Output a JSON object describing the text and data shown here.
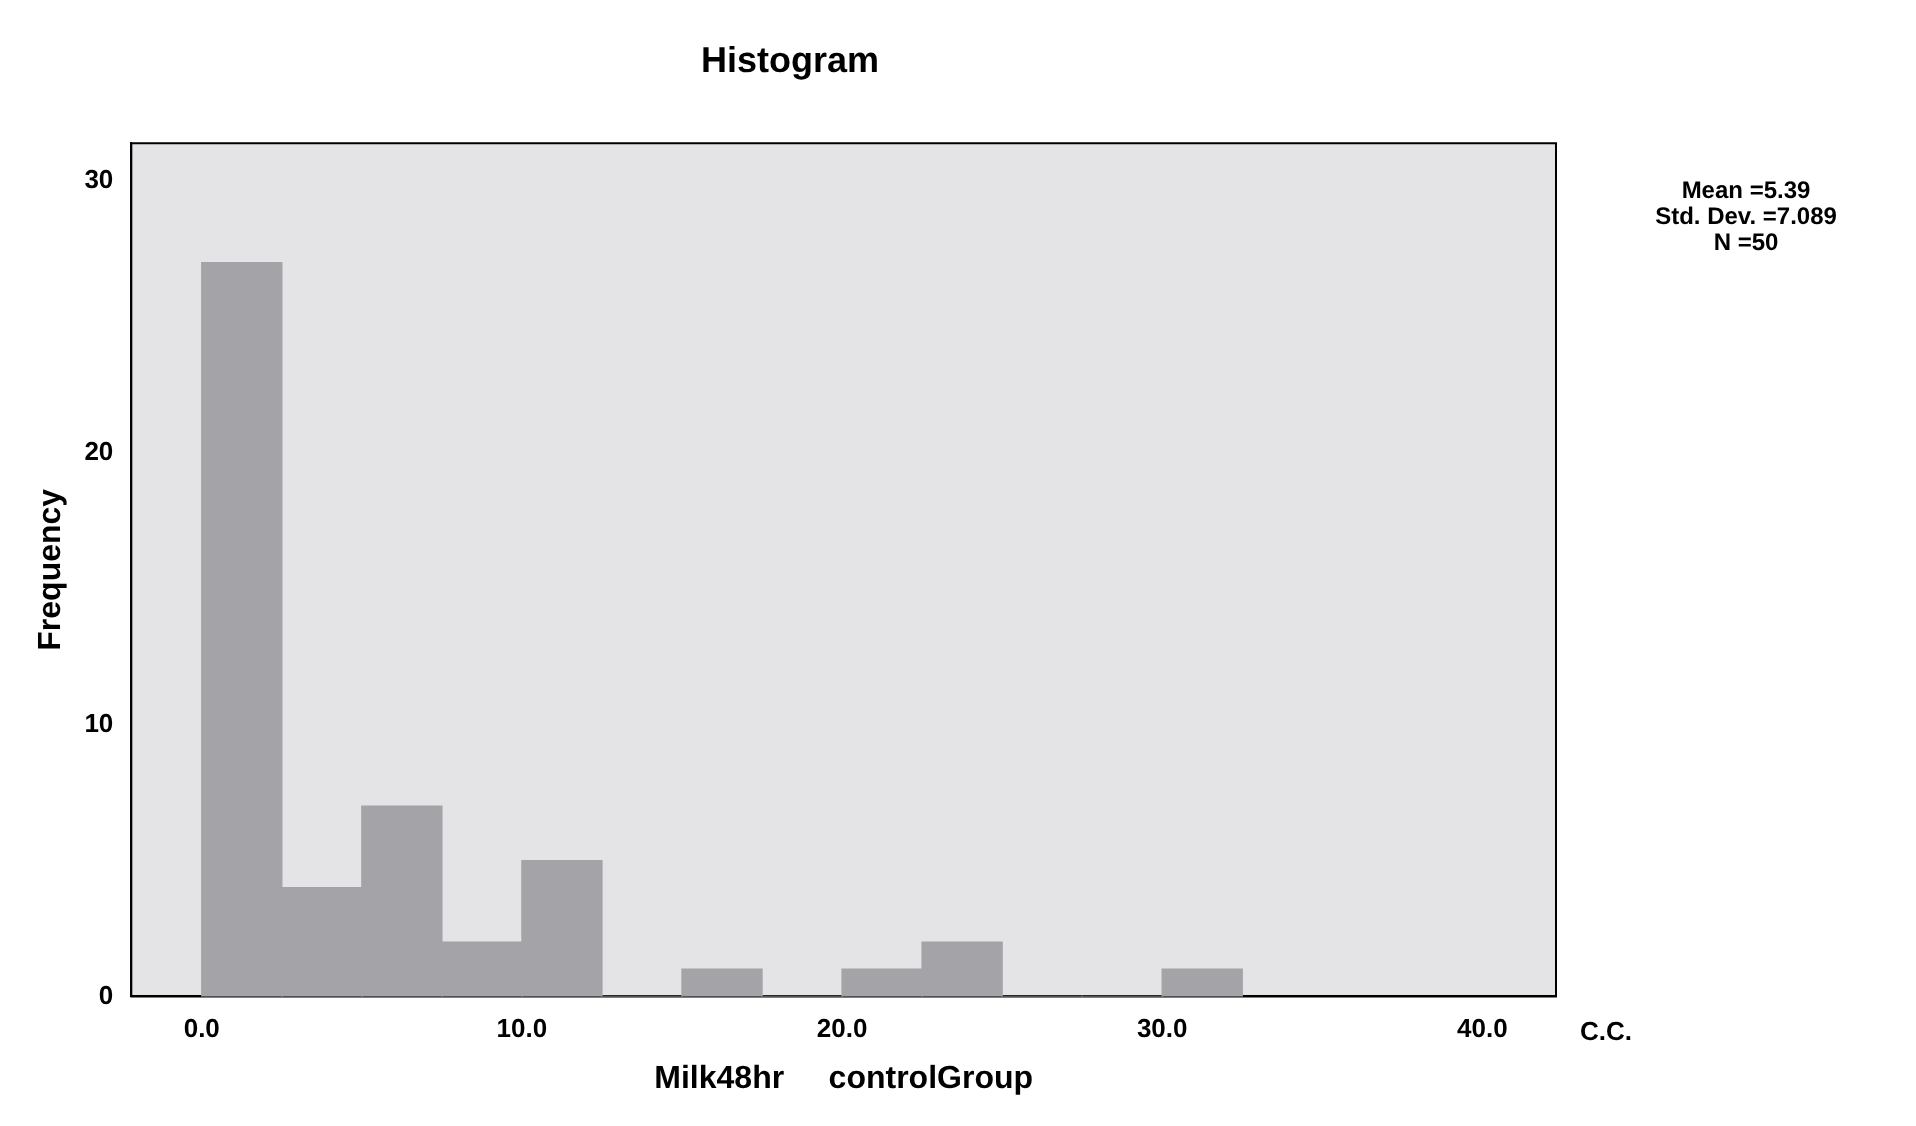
{
  "chart_data": {
    "type": "histogram",
    "title": "Histogram",
    "xlabel": "Milk48hr     controlGroup",
    "ylabel": "Frequency",
    "bins": [
      0,
      2.5,
      5,
      7.5,
      10,
      12.5,
      15,
      17.5,
      20,
      22.5,
      25,
      27.5,
      30,
      32.5
    ],
    "values": [
      27,
      4,
      7,
      2,
      5,
      0,
      1,
      0,
      1,
      2,
      0,
      0,
      1
    ],
    "color": "#a3a3a8",
    "xlim": [
      -2.2,
      42.3
    ],
    "ylim": [
      0,
      31.4
    ],
    "xticks": [
      {
        "value": 0,
        "label": "0.0"
      },
      {
        "value": 10,
        "label": "10.0"
      },
      {
        "value": 20,
        "label": "20.0"
      },
      {
        "value": 30,
        "label": "30.0"
      },
      {
        "value": 40,
        "label": "40.0"
      }
    ],
    "yticks": [
      0,
      10,
      20,
      30
    ],
    "grid": false,
    "legend": false,
    "annotations": [
      "Mean =5.39",
      "Std. Dev. =7.089",
      "N =50",
      "C.C."
    ]
  }
}
